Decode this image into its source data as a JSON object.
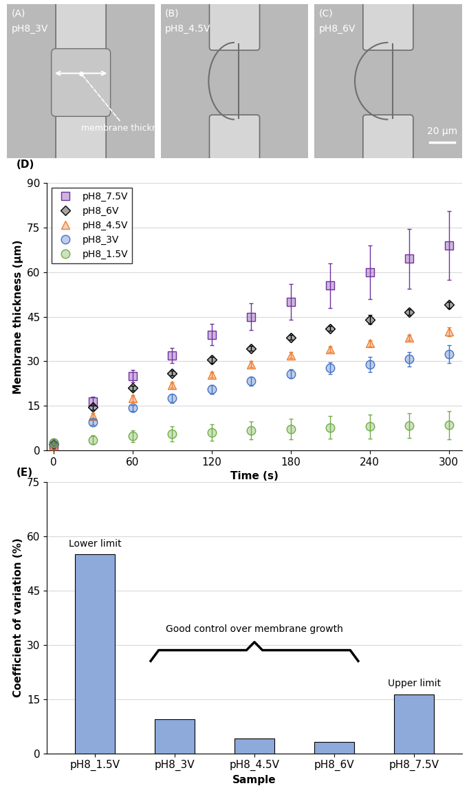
{
  "images": [
    {
      "label": "(A)",
      "sample": "pH8_3V",
      "annotation": "membrane thickness"
    },
    {
      "label": "(B)",
      "sample": "pH8_4.5V"
    },
    {
      "label": "(C)",
      "sample": "pH8_6V",
      "scale_bar": "20 µm"
    }
  ],
  "chart_data": [
    {
      "type": "scatter",
      "panel_label": "(D)",
      "x_label": "Time (s)",
      "y_label": "Membrane thickness (µm)",
      "x": [
        0,
        30,
        60,
        90,
        120,
        150,
        180,
        210,
        240,
        270,
        300
      ],
      "xlim": [
        -5,
        310
      ],
      "xticks": [
        0,
        60,
        120,
        180,
        240,
        300
      ],
      "ylim": [
        0,
        90
      ],
      "yticks": [
        0,
        15,
        30,
        45,
        60,
        75,
        90
      ],
      "grid": true,
      "legend": "upper left",
      "series": [
        {
          "name": "pH8_7.5V",
          "color": "#7030a0",
          "marker": "s",
          "values": [
            1.5,
            16.5,
            25,
            32,
            39,
            45,
            50,
            55.5,
            60,
            64.5,
            69
          ],
          "errors": [
            1,
            1.5,
            2,
            2.5,
            3.5,
            4.5,
            6,
            7.5,
            9,
            10,
            11.5
          ]
        },
        {
          "name": "pH8_6V",
          "color": "#000000",
          "marker": "D",
          "values": [
            2,
            14.5,
            21,
            26,
            30.5,
            34.3,
            38,
            41,
            44,
            46.5,
            49
          ],
          "errors": [
            0.5,
            0.8,
            0.8,
            0.8,
            1,
            0.8,
            0.8,
            0.8,
            1.5,
            1,
            1
          ]
        },
        {
          "name": "pH8_4.5V",
          "color": "#ed7d31",
          "marker": "^",
          "values": [
            1.5,
            11.5,
            17.5,
            22,
            25.5,
            29,
            32,
            34,
            36,
            38,
            40
          ],
          "errors": [
            0.5,
            1,
            1,
            1,
            1,
            1,
            1,
            1,
            1,
            1,
            1.5
          ]
        },
        {
          "name": "pH8_3V",
          "color": "#4472c4",
          "marker": "o",
          "values": [
            2.5,
            9.5,
            14.3,
            17.5,
            20.5,
            23.3,
            25.7,
            27.7,
            29,
            30.7,
            32.3
          ],
          "errors": [
            0.5,
            1,
            1,
            1.5,
            1.5,
            1.5,
            1.5,
            2,
            2.5,
            2.5,
            3
          ]
        },
        {
          "name": "pH8_1.5V",
          "color": "#70ad47",
          "marker": "o",
          "values": [
            2.5,
            3.5,
            4.8,
            5.5,
            6,
            6.7,
            7.2,
            7.7,
            8,
            8.3,
            8.5
          ],
          "errors": [
            1.5,
            1.5,
            2,
            2.5,
            2.8,
            3,
            3.5,
            3.8,
            4,
            4.2,
            4.7
          ]
        }
      ]
    },
    {
      "type": "bar",
      "panel_label": "(E)",
      "x_label": "Sample",
      "y_label": "Coefficient of variation (%)",
      "categories": [
        "pH8_1.5V",
        "pH8_3V",
        "pH8_4.5V",
        "pH8_6V",
        "pH8_7.5V"
      ],
      "values": [
        55,
        9.5,
        4,
        3.2,
        16.3
      ],
      "color": "#8eaadb",
      "ylim": [
        0,
        75
      ],
      "yticks": [
        0,
        15,
        30,
        45,
        60,
        75
      ],
      "grid": true,
      "annotations": [
        "Lower limit",
        "Good control over membrane growth",
        "Upper limit"
      ]
    }
  ]
}
